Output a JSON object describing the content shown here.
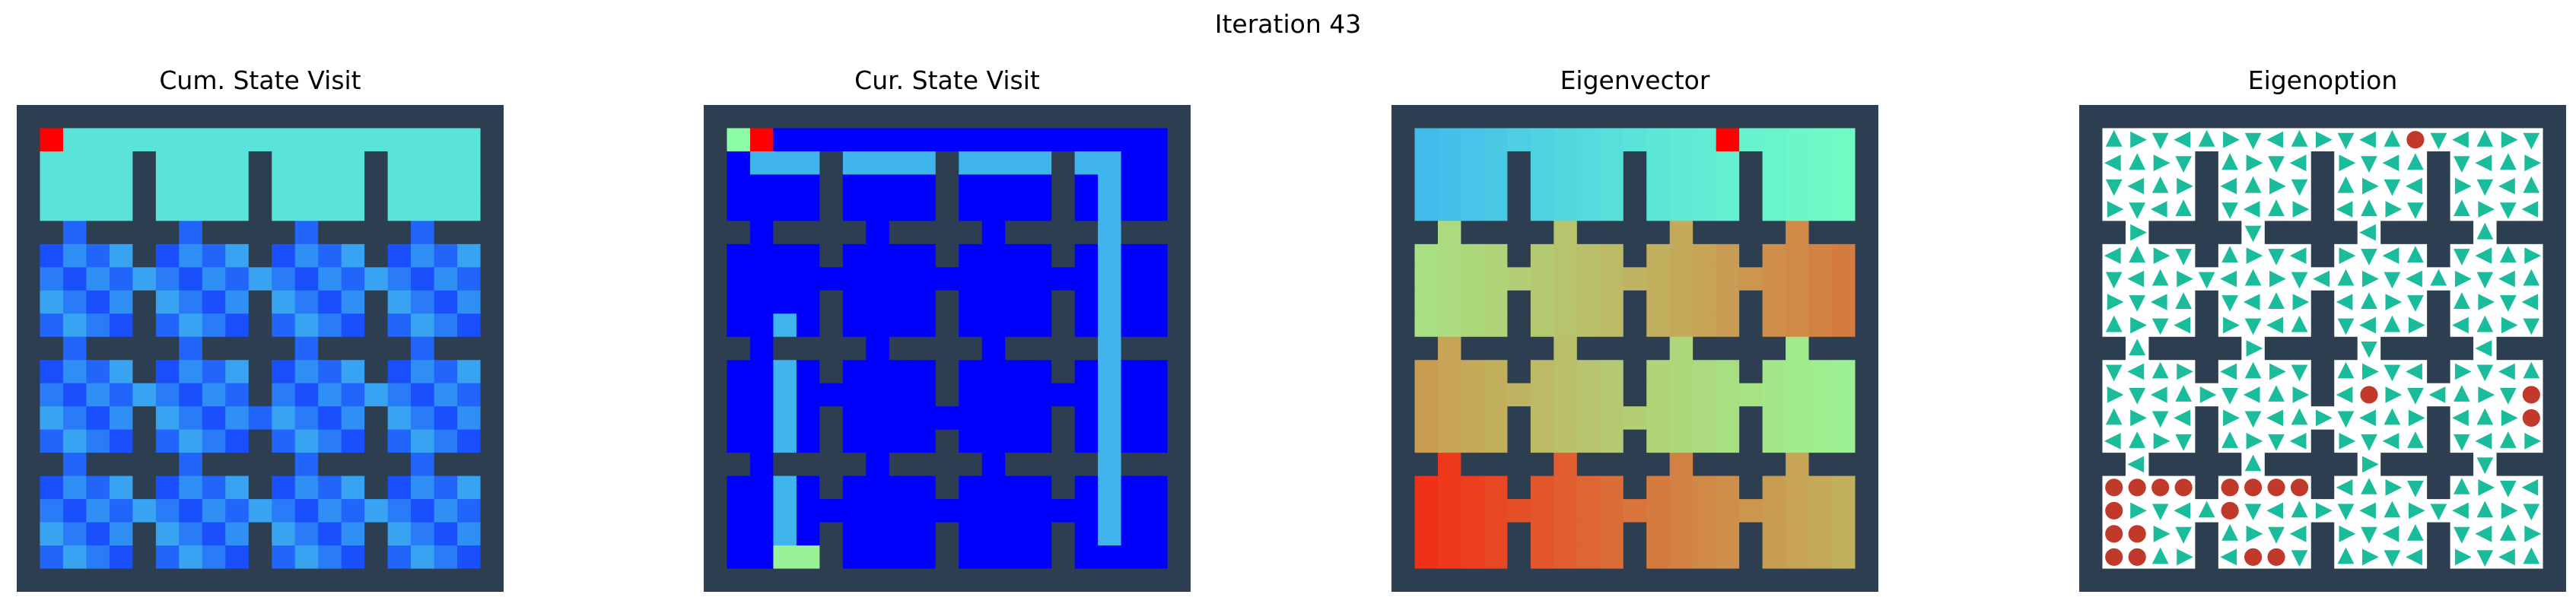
{
  "figure": {
    "title": "Iteration 43"
  },
  "colors": {
    "wall": "#2c3e50",
    "arrow": "#1abc9c",
    "dot": "#c0392b",
    "floor": "#ffffff"
  },
  "colormap": "rainbow",
  "legend": {
    "wall": "#",
    "door": "D"
  },
  "gridmap": [
    "###################",
    "#....#....#....#..#"
  ],
  "chart_data": [
    {
      "type": "heatmap",
      "title": "Cum. State Visit"
    },
    {
      "type": "heatmap",
      "title": "Cur. State Visit"
    },
    {
      "type": "heatmap",
      "title": "Eigenvector"
    },
    {
      "type": "heatmap",
      "title": "Eigenoption"
    }
  ]
}
